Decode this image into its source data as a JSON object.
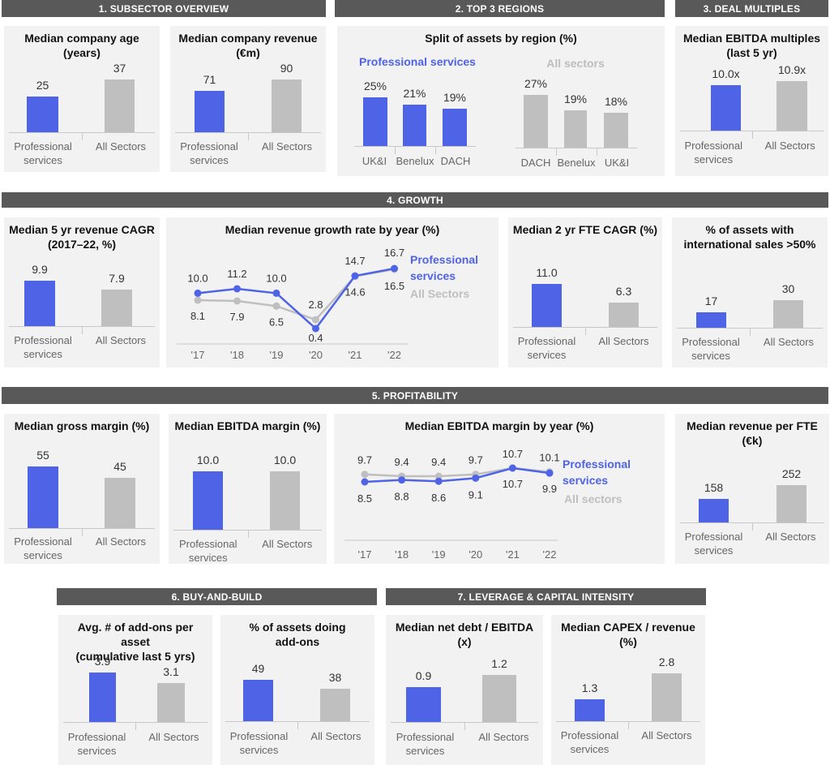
{
  "colors": {
    "primary": "#4f63e6",
    "secondary": "#bfbfbf",
    "header": "#595959",
    "panel": "#f2f2f2"
  },
  "sections": {
    "s1": "1. SUBSECTOR OVERVIEW",
    "s2": "2. TOP 3 REGIONS",
    "s3": "3. DEAL MULTIPLES",
    "s4": "4. GROWTH",
    "s5": "5.  PROFITABILITY",
    "s6": "6. BUY-AND-BUILD",
    "s7": "7. LEVERAGE & CAPITAL INTENSITY"
  },
  "labels": {
    "prof_line1": "Professional",
    "prof_line2": "services",
    "all_sectors": "All Sectors",
    "all_sectors_lc": "All sectors"
  },
  "chart_data": [
    {
      "id": "age",
      "type": "bar",
      "title_lines": [
        "Median company age",
        "(years)"
      ],
      "categories": [
        "Professional services",
        "All Sectors"
      ],
      "values": [
        25,
        37
      ],
      "value_labels": [
        "25",
        "37"
      ]
    },
    {
      "id": "revenue",
      "type": "bar",
      "title_lines": [
        "Median company revenue",
        "(€m)"
      ],
      "categories": [
        "Professional services",
        "All Sectors"
      ],
      "values": [
        71,
        90
      ],
      "value_labels": [
        "71",
        "90"
      ]
    },
    {
      "id": "regions",
      "type": "bar",
      "title_lines": [
        "Split of assets by region (%)"
      ],
      "groups": [
        {
          "name": "Professional services",
          "categories": [
            "UK&I",
            "Benelux",
            "DACH"
          ],
          "values": [
            25,
            21,
            19
          ],
          "value_labels": [
            "25%",
            "21%",
            "19%"
          ]
        },
        {
          "name": "All sectors",
          "categories": [
            "DACH",
            "Benelux",
            "UK&I"
          ],
          "values": [
            27,
            19,
            18
          ],
          "value_labels": [
            "27%",
            "19%",
            "18%"
          ]
        }
      ]
    },
    {
      "id": "ebitda_mult",
      "type": "bar",
      "title_lines": [
        "Median EBITDA multiples",
        "(last 5 yr)"
      ],
      "categories": [
        "Professional services",
        "All Sectors"
      ],
      "values": [
        10.0,
        10.9
      ],
      "value_labels": [
        "10.0x",
        "10.9x"
      ]
    },
    {
      "id": "rev_cagr",
      "type": "bar",
      "title_lines": [
        "Median 5 yr revenue CAGR",
        "(2017–22, %)"
      ],
      "categories": [
        "Professional services",
        "All Sectors"
      ],
      "values": [
        9.9,
        7.9
      ],
      "value_labels": [
        "9.9",
        "7.9"
      ]
    },
    {
      "id": "growth_line",
      "type": "line",
      "title_lines": [
        "Median revenue growth rate by year (%)"
      ],
      "x": [
        "'17",
        "'18",
        "'19",
        "'20",
        "'21",
        "'22"
      ],
      "series": [
        {
          "name": "Professional services",
          "values": [
            10.0,
            11.2,
            10.0,
            0.4,
            14.7,
            16.7
          ],
          "labels": [
            "10.0",
            "11.2",
            "10.0",
            "0.4",
            "14.7",
            "16.7"
          ]
        },
        {
          "name": "All Sectors",
          "values": [
            8.1,
            7.9,
            6.5,
            2.8,
            14.6,
            16.5
          ],
          "labels": [
            "8.1",
            "7.9",
            "6.5",
            "2.8",
            "14.6",
            "16.5"
          ]
        }
      ]
    },
    {
      "id": "fte_cagr",
      "type": "bar",
      "title_lines": [
        "Median 2 yr FTE CAGR (%)"
      ],
      "categories": [
        "Professional services",
        "All Sectors"
      ],
      "values": [
        11.0,
        6.3
      ],
      "value_labels": [
        "11.0",
        "6.3"
      ]
    },
    {
      "id": "intl",
      "type": "bar",
      "title_lines": [
        "% of assets with",
        "international sales >50%"
      ],
      "categories": [
        "Professional services",
        "All Sectors"
      ],
      "values": [
        17,
        30
      ],
      "value_labels": [
        "17",
        "30"
      ]
    },
    {
      "id": "gross_margin",
      "type": "bar",
      "title_lines": [
        "Median gross margin (%)"
      ],
      "categories": [
        "Professional services",
        "All Sectors"
      ],
      "values": [
        55,
        45
      ],
      "value_labels": [
        "55",
        "45"
      ]
    },
    {
      "id": "ebitda_margin",
      "type": "bar",
      "title_lines": [
        "Median EBITDA margin (%)"
      ],
      "categories": [
        "Professional services",
        "All Sectors"
      ],
      "values": [
        10.0,
        10.0
      ],
      "value_labels": [
        "10.0",
        "10.0"
      ]
    },
    {
      "id": "ebitda_line",
      "type": "line",
      "title_lines": [
        "Median EBITDA margin by year (%)"
      ],
      "x": [
        "'17",
        "'18",
        "'19",
        "'20",
        "'21",
        "'22"
      ],
      "series": [
        {
          "name": "Professional services",
          "values": [
            8.5,
            8.8,
            8.6,
            9.1,
            10.7,
            9.9
          ],
          "labels": [
            "8.5",
            "8.8",
            "8.6",
            "9.1",
            "10.7",
            "9.9"
          ]
        },
        {
          "name": "All sectors",
          "values": [
            9.7,
            9.4,
            9.4,
            9.7,
            10.7,
            10.1
          ],
          "labels": [
            "9.7",
            "9.4",
            "9.4",
            "9.7",
            "10.7",
            "10.1"
          ]
        }
      ]
    },
    {
      "id": "rev_fte",
      "type": "bar",
      "title_lines": [
        "Median revenue per FTE",
        "(€k)"
      ],
      "categories": [
        "Professional services",
        "All Sectors"
      ],
      "values": [
        158,
        252
      ],
      "value_labels": [
        "158",
        "252"
      ]
    },
    {
      "id": "addons",
      "type": "bar",
      "title_lines": [
        "Avg. # of add-ons per asset",
        "(cumulative last 5 yrs)"
      ],
      "categories": [
        "Professional services",
        "All Sectors"
      ],
      "values": [
        3.9,
        3.1
      ],
      "value_labels": [
        "3.9",
        "3.1"
      ]
    },
    {
      "id": "doing_addons",
      "type": "bar",
      "title_lines": [
        "% of assets doing",
        "add-ons"
      ],
      "categories": [
        "Professional services",
        "All Sectors"
      ],
      "values": [
        49,
        38
      ],
      "value_labels": [
        "49",
        "38"
      ]
    },
    {
      "id": "net_debt",
      "type": "bar",
      "title_lines": [
        "Median net debt / EBITDA",
        "(x)"
      ],
      "categories": [
        "Professional services",
        "All Sectors"
      ],
      "values": [
        0.9,
        1.2
      ],
      "value_labels": [
        "0.9",
        "1.2"
      ]
    },
    {
      "id": "capex",
      "type": "bar",
      "title_lines": [
        "Median CAPEX / revenue",
        "(%)"
      ],
      "categories": [
        "Professional services",
        "All Sectors"
      ],
      "values": [
        1.3,
        2.8
      ],
      "value_labels": [
        "1.3",
        "2.8"
      ]
    }
  ]
}
